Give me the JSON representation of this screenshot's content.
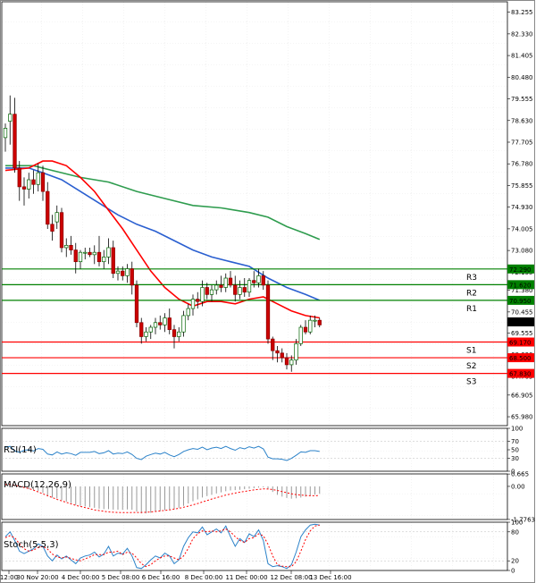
{
  "chart_data": {
    "type": "candlestick",
    "main": {
      "y_ticks": [
        "83.255",
        "82.330",
        "81.405",
        "80.480",
        "79.555",
        "78.630",
        "77.705",
        "76.780",
        "75.855",
        "74.930",
        "74.005",
        "73.080",
        "72.155",
        "71.380",
        "70.455",
        "69.555",
        "68.630",
        "67.705",
        "66.905",
        "65.980"
      ],
      "ylim": [
        65.6,
        83.7
      ],
      "candles": [
        {
          "o": 77.9,
          "h": 78.5,
          "l": 77.3,
          "c": 78.3
        },
        {
          "o": 78.6,
          "h": 79.7,
          "l": 77.6,
          "c": 78.9
        },
        {
          "o": 78.9,
          "h": 79.6,
          "l": 76.4,
          "c": 76.6
        },
        {
          "o": 76.6,
          "h": 76.9,
          "l": 75.2,
          "c": 75.8
        },
        {
          "o": 75.8,
          "h": 76.2,
          "l": 75.0,
          "c": 75.7
        },
        {
          "o": 75.7,
          "h": 76.4,
          "l": 75.3,
          "c": 76.1
        },
        {
          "o": 76.1,
          "h": 76.5,
          "l": 75.5,
          "c": 75.9
        },
        {
          "o": 75.9,
          "h": 76.8,
          "l": 75.6,
          "c": 76.4
        },
        {
          "o": 76.4,
          "h": 76.7,
          "l": 75.2,
          "c": 75.6
        },
        {
          "o": 75.6,
          "h": 76.0,
          "l": 74.0,
          "c": 74.2
        },
        {
          "o": 74.2,
          "h": 74.6,
          "l": 73.5,
          "c": 73.9
        },
        {
          "o": 74.3,
          "h": 75.0,
          "l": 74.0,
          "c": 74.7
        },
        {
          "o": 74.7,
          "h": 74.9,
          "l": 73.0,
          "c": 73.2
        },
        {
          "o": 73.2,
          "h": 73.6,
          "l": 72.8,
          "c": 73.3
        },
        {
          "o": 73.3,
          "h": 73.7,
          "l": 72.9,
          "c": 73.1
        },
        {
          "o": 73.1,
          "h": 73.4,
          "l": 72.1,
          "c": 72.6
        },
        {
          "o": 72.6,
          "h": 73.1,
          "l": 72.3,
          "c": 73.0
        },
        {
          "o": 73.0,
          "h": 73.2,
          "l": 72.7,
          "c": 73.0
        },
        {
          "o": 73.0,
          "h": 73.2,
          "l": 72.8,
          "c": 72.9
        },
        {
          "o": 72.9,
          "h": 73.3,
          "l": 72.5,
          "c": 73.0
        },
        {
          "o": 73.0,
          "h": 73.7,
          "l": 72.4,
          "c": 72.6
        },
        {
          "o": 72.6,
          "h": 73.1,
          "l": 72.3,
          "c": 72.8
        },
        {
          "o": 72.8,
          "h": 73.6,
          "l": 72.5,
          "c": 73.2
        },
        {
          "o": 73.2,
          "h": 73.5,
          "l": 71.9,
          "c": 72.1
        },
        {
          "o": 72.1,
          "h": 72.4,
          "l": 71.8,
          "c": 72.2
        },
        {
          "o": 72.2,
          "h": 72.4,
          "l": 71.8,
          "c": 72.0
        },
        {
          "o": 72.0,
          "h": 72.5,
          "l": 71.7,
          "c": 72.3
        },
        {
          "o": 72.3,
          "h": 72.6,
          "l": 71.2,
          "c": 71.6
        },
        {
          "o": 71.6,
          "h": 71.8,
          "l": 69.8,
          "c": 70.0
        },
        {
          "o": 70.0,
          "h": 70.2,
          "l": 69.1,
          "c": 69.4
        },
        {
          "o": 69.4,
          "h": 69.8,
          "l": 69.2,
          "c": 69.6
        },
        {
          "o": 69.6,
          "h": 69.9,
          "l": 69.3,
          "c": 69.8
        },
        {
          "o": 69.8,
          "h": 70.2,
          "l": 69.5,
          "c": 70.0
        },
        {
          "o": 70.0,
          "h": 70.3,
          "l": 69.7,
          "c": 69.9
        },
        {
          "o": 69.9,
          "h": 70.4,
          "l": 69.6,
          "c": 70.2
        },
        {
          "o": 70.2,
          "h": 70.6,
          "l": 69.5,
          "c": 69.7
        },
        {
          "o": 69.7,
          "h": 69.9,
          "l": 68.9,
          "c": 69.4
        },
        {
          "o": 69.4,
          "h": 69.8,
          "l": 69.2,
          "c": 69.6
        },
        {
          "o": 69.6,
          "h": 70.5,
          "l": 69.4,
          "c": 70.3
        },
        {
          "o": 70.3,
          "h": 70.8,
          "l": 70.1,
          "c": 70.6
        },
        {
          "o": 70.6,
          "h": 71.2,
          "l": 70.3,
          "c": 71.0
        },
        {
          "o": 71.0,
          "h": 71.3,
          "l": 70.6,
          "c": 70.9
        },
        {
          "o": 70.9,
          "h": 71.8,
          "l": 70.7,
          "c": 71.5
        },
        {
          "o": 71.5,
          "h": 71.7,
          "l": 71.0,
          "c": 71.2
        },
        {
          "o": 71.2,
          "h": 71.6,
          "l": 70.9,
          "c": 71.4
        },
        {
          "o": 71.4,
          "h": 71.8,
          "l": 71.2,
          "c": 71.6
        },
        {
          "o": 71.6,
          "h": 72.0,
          "l": 71.3,
          "c": 71.5
        },
        {
          "o": 71.5,
          "h": 72.1,
          "l": 71.3,
          "c": 71.9
        },
        {
          "o": 71.9,
          "h": 72.2,
          "l": 71.5,
          "c": 71.6
        },
        {
          "o": 71.6,
          "h": 72.0,
          "l": 70.9,
          "c": 71.2
        },
        {
          "o": 71.2,
          "h": 71.8,
          "l": 71.0,
          "c": 71.5
        },
        {
          "o": 71.5,
          "h": 71.9,
          "l": 71.1,
          "c": 71.3
        },
        {
          "o": 71.3,
          "h": 71.9,
          "l": 71.1,
          "c": 71.8
        },
        {
          "o": 71.8,
          "h": 72.2,
          "l": 71.5,
          "c": 71.7
        },
        {
          "o": 71.7,
          "h": 72.3,
          "l": 71.5,
          "c": 72.0
        },
        {
          "o": 72.0,
          "h": 72.2,
          "l": 71.4,
          "c": 71.6
        },
        {
          "o": 71.6,
          "h": 71.8,
          "l": 69.1,
          "c": 69.3
        },
        {
          "o": 69.3,
          "h": 69.4,
          "l": 68.4,
          "c": 68.8
        },
        {
          "o": 68.8,
          "h": 69.0,
          "l": 68.3,
          "c": 68.7
        },
        {
          "o": 68.7,
          "h": 68.9,
          "l": 68.3,
          "c": 68.5
        },
        {
          "o": 68.5,
          "h": 68.7,
          "l": 68.0,
          "c": 68.2
        },
        {
          "o": 68.2,
          "h": 68.6,
          "l": 67.9,
          "c": 68.4
        },
        {
          "o": 68.4,
          "h": 69.3,
          "l": 68.2,
          "c": 69.1
        },
        {
          "o": 69.1,
          "h": 69.9,
          "l": 69.0,
          "c": 69.8
        },
        {
          "o": 69.8,
          "h": 70.1,
          "l": 69.5,
          "c": 69.6
        },
        {
          "o": 69.6,
          "h": 70.3,
          "l": 69.5,
          "c": 70.1
        },
        {
          "o": 70.1,
          "h": 70.3,
          "l": 69.8,
          "c": 70.1
        },
        {
          "o": 70.1,
          "h": 70.2,
          "l": 69.8,
          "c": 69.9
        }
      ],
      "levels": [
        {
          "name": "R3",
          "value": 72.29,
          "label": "72.290",
          "color": "#008000"
        },
        {
          "name": "R2",
          "value": 71.62,
          "label": "71.620",
          "color": "#008000"
        },
        {
          "name": "R1",
          "value": 70.95,
          "label": "70.950",
          "color": "#008000"
        },
        {
          "name": "S1",
          "value": 69.17,
          "label": "69.170",
          "color": "#ff0000"
        },
        {
          "name": "S2",
          "value": 68.5,
          "label": "68.500",
          "color": "#ff0000"
        },
        {
          "name": "S3",
          "value": 67.83,
          "label": "67.830",
          "color": "#ff0000"
        }
      ],
      "price": {
        "value": 70.03,
        "label": "70.030"
      },
      "ma_fast": {
        "color": "#ff0000",
        "points": [
          [
            0,
            76.5
          ],
          [
            5,
            76.6
          ],
          [
            8,
            76.9
          ],
          [
            10,
            76.9
          ],
          [
            13,
            76.7
          ],
          [
            16,
            76.2
          ],
          [
            19,
            75.6
          ],
          [
            22,
            74.8
          ],
          [
            25,
            74.0
          ],
          [
            28,
            73.1
          ],
          [
            31,
            72.2
          ],
          [
            34,
            71.5
          ],
          [
            37,
            71.0
          ],
          [
            40,
            70.7
          ],
          [
            43,
            70.9
          ],
          [
            46,
            70.9
          ],
          [
            49,
            70.8
          ],
          [
            52,
            71.0
          ],
          [
            55,
            71.1
          ],
          [
            58,
            70.8
          ],
          [
            61,
            70.5
          ],
          [
            64,
            70.3
          ],
          [
            67,
            70.2
          ]
        ]
      },
      "ma_mid": {
        "color": "#2a5fd0",
        "points": [
          [
            0,
            76.6
          ],
          [
            5,
            76.6
          ],
          [
            8,
            76.4
          ],
          [
            12,
            76.1
          ],
          [
            16,
            75.6
          ],
          [
            20,
            75.1
          ],
          [
            24,
            74.6
          ],
          [
            28,
            74.2
          ],
          [
            32,
            73.9
          ],
          [
            36,
            73.5
          ],
          [
            40,
            73.1
          ],
          [
            44,
            72.8
          ],
          [
            48,
            72.6
          ],
          [
            52,
            72.4
          ],
          [
            56,
            71.9
          ],
          [
            60,
            71.5
          ],
          [
            64,
            71.2
          ],
          [
            67,
            70.95
          ]
        ]
      },
      "ma_slow": {
        "color": "#2e9c4e",
        "points": [
          [
            0,
            76.7
          ],
          [
            6,
            76.7
          ],
          [
            10,
            76.5
          ],
          [
            16,
            76.2
          ],
          [
            22,
            76.0
          ],
          [
            28,
            75.6
          ],
          [
            34,
            75.3
          ],
          [
            40,
            75.0
          ],
          [
            46,
            74.9
          ],
          [
            52,
            74.7
          ],
          [
            56,
            74.5
          ],
          [
            60,
            74.1
          ],
          [
            64,
            73.8
          ],
          [
            67,
            73.55
          ]
        ]
      }
    },
    "rsi": {
      "title": "RSI(14)",
      "y_ticks": [
        "100",
        "70",
        "50",
        "30",
        "0"
      ],
      "ylim": [
        0,
        100
      ],
      "values": [
        56,
        58,
        47,
        44,
        49,
        50,
        47,
        53,
        51,
        40,
        38,
        45,
        40,
        43,
        41,
        37,
        44,
        44,
        44,
        46,
        41,
        43,
        48,
        40,
        42,
        41,
        45,
        39,
        30,
        27,
        35,
        39,
        42,
        40,
        44,
        38,
        34,
        39,
        46,
        50,
        53,
        51,
        56,
        50,
        54,
        56,
        53,
        58,
        53,
        49,
        55,
        52,
        57,
        54,
        58,
        52,
        33,
        29,
        29,
        28,
        25,
        30,
        37,
        45,
        44,
        48,
        48,
        46
      ],
      "color": "#2b82c9"
    },
    "macd": {
      "title": "MACD(12,26,9)",
      "y_ticks": [
        "0.665",
        "0.00",
        "-1.7763"
      ],
      "ylim": [
        -1.78,
        0.67
      ],
      "hist": [
        0.12,
        0.15,
        0.05,
        -0.05,
        -0.1,
        -0.15,
        -0.2,
        -0.25,
        -0.35,
        -0.5,
        -0.6,
        -0.65,
        -0.75,
        -0.82,
        -0.9,
        -1.0,
        -1.05,
        -1.08,
        -1.12,
        -1.15,
        -1.2,
        -1.22,
        -1.22,
        -1.25,
        -1.25,
        -1.26,
        -1.24,
        -1.26,
        -1.35,
        -1.45,
        -1.45,
        -1.42,
        -1.38,
        -1.34,
        -1.28,
        -1.24,
        -1.22,
        -1.15,
        -1.05,
        -0.92,
        -0.8,
        -0.7,
        -0.6,
        -0.52,
        -0.45,
        -0.38,
        -0.32,
        -0.26,
        -0.22,
        -0.2,
        -0.18,
        -0.15,
        -0.12,
        -0.1,
        -0.06,
        -0.05,
        -0.15,
        -0.3,
        -0.45,
        -0.55,
        -0.62,
        -0.66,
        -0.64,
        -0.6,
        -0.55,
        -0.5,
        -0.44,
        -0.4
      ],
      "signal": [
        0.1,
        0.1,
        0.06,
        0.0,
        -0.06,
        -0.12,
        -0.2,
        -0.3,
        -0.4,
        -0.5,
        -0.6,
        -0.7,
        -0.78,
        -0.86,
        -0.94,
        -1.02,
        -1.08,
        -1.14,
        -1.2,
        -1.26,
        -1.3,
        -1.34,
        -1.37,
        -1.39,
        -1.4,
        -1.41,
        -1.41,
        -1.4,
        -1.4,
        -1.4,
        -1.39,
        -1.37,
        -1.35,
        -1.32,
        -1.29,
        -1.26,
        -1.22,
        -1.18,
        -1.12,
        -1.06,
        -0.99,
        -0.92,
        -0.84,
        -0.76,
        -0.68,
        -0.61,
        -0.54,
        -0.47,
        -0.41,
        -0.36,
        -0.31,
        -0.27,
        -0.23,
        -0.19,
        -0.16,
        -0.13,
        -0.14,
        -0.17,
        -0.22,
        -0.28,
        -0.34,
        -0.4,
        -0.44,
        -0.47,
        -0.49,
        -0.5,
        -0.5,
        -0.49
      ]
    },
    "stoch": {
      "title": "Stoch(5,5,3)",
      "y_ticks": [
        "100",
        "80",
        "20",
        "0"
      ],
      "ylim": [
        0,
        100
      ],
      "k": [
        70,
        80,
        62,
        40,
        35,
        40,
        45,
        55,
        50,
        30,
        20,
        32,
        24,
        30,
        22,
        14,
        26,
        30,
        32,
        38,
        28,
        34,
        50,
        30,
        36,
        34,
        46,
        30,
        6,
        4,
        12,
        22,
        30,
        26,
        36,
        30,
        14,
        22,
        50,
        68,
        80,
        78,
        90,
        74,
        80,
        86,
        78,
        92,
        70,
        50,
        66,
        58,
        76,
        70,
        84,
        62,
        14,
        8,
        10,
        8,
        4,
        12,
        38,
        70,
        84,
        94,
        96,
        94
      ],
      "d": [
        68,
        72,
        68,
        55,
        45,
        40,
        42,
        48,
        50,
        44,
        34,
        28,
        26,
        28,
        25,
        22,
        20,
        24,
        28,
        33,
        33,
        33,
        38,
        38,
        40,
        33,
        38,
        36,
        26,
        14,
        8,
        12,
        20,
        26,
        30,
        30,
        26,
        22,
        30,
        46,
        66,
        76,
        82,
        80,
        82,
        80,
        82,
        86,
        80,
        70,
        62,
        58,
        66,
        68,
        76,
        72,
        54,
        30,
        12,
        9,
        8,
        8,
        18,
        40,
        64,
        82,
        92,
        94
      ],
      "k_color": "#2b82c9",
      "d_color": "#ff0000"
    },
    "x_labels": [
      "12:00",
      "30 Nov 20:00",
      "4 Dec 00:00",
      "5 Dec 08:00",
      "6 Dec 16:00",
      "8 Dec 00:00",
      "11 Dec 00:00",
      "12 Dec 08:00",
      "13 Dec 16:00"
    ],
    "x_label_candle": [
      0,
      4,
      9,
      15,
      21,
      27,
      33,
      40,
      46
    ]
  }
}
